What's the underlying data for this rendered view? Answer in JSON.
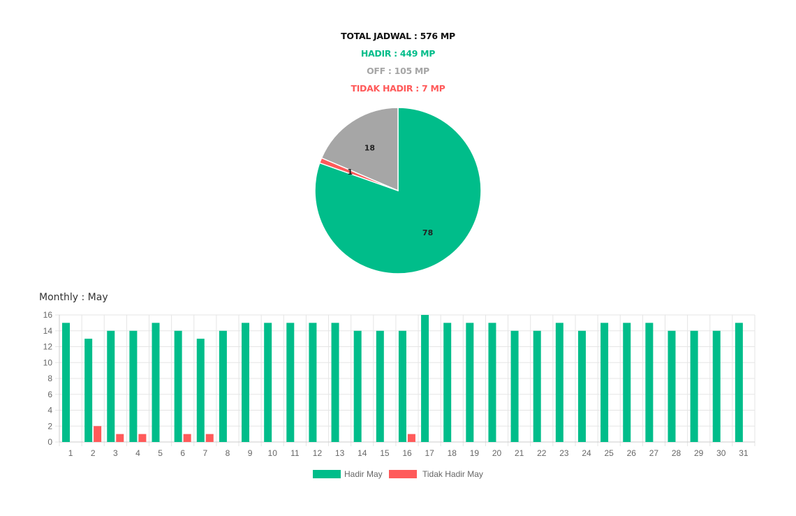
{
  "summary": {
    "total": "TOTAL JADWAL : 576 MP",
    "hadir": "HADIR : 449 MP",
    "off": "OFF : 105 MP",
    "tidak_hadir": "TIDAK HADIR : 7 MP"
  },
  "colors": {
    "hadir": "#00bd8a",
    "off": "#a6a6a6",
    "tidak_hadir": "#ff5a5a",
    "grid": "#e5e5e5",
    "axis_text": "#666666"
  },
  "monthly_title": "Monthly : May",
  "chart_data": [
    {
      "type": "pie",
      "slices": [
        {
          "label": "78",
          "value": 78,
          "color": "#00bd8a"
        },
        {
          "label": "1",
          "value": 1,
          "color": "#ff5a5a"
        },
        {
          "label": "18",
          "value": 18,
          "color": "#a6a6a6"
        }
      ]
    },
    {
      "type": "bar",
      "categories": [
        "1",
        "2",
        "3",
        "4",
        "5",
        "6",
        "7",
        "8",
        "9",
        "10",
        "11",
        "12",
        "13",
        "14",
        "15",
        "16",
        "17",
        "18",
        "19",
        "20",
        "21",
        "22",
        "23",
        "24",
        "25",
        "26",
        "27",
        "28",
        "29",
        "30",
        "31"
      ],
      "series": [
        {
          "name": "Hadir May",
          "color": "#00bd8a",
          "values": [
            15,
            13,
            14,
            14,
            15,
            14,
            13,
            14,
            15,
            15,
            15,
            15,
            15,
            14,
            14,
            14,
            16,
            15,
            15,
            15,
            14,
            14,
            15,
            14,
            15,
            15,
            15,
            14,
            14,
            14,
            15
          ]
        },
        {
          "name": "Tidak Hadir May",
          "color": "#ff5a5a",
          "values": [
            0,
            2,
            1,
            1,
            0,
            1,
            1,
            0,
            0,
            0,
            0,
            0,
            0,
            0,
            0,
            1,
            0,
            0,
            0,
            0,
            0,
            0,
            0,
            0,
            0,
            0,
            0,
            0,
            0,
            0,
            0
          ]
        }
      ],
      "yticks": [
        0,
        2,
        4,
        6,
        8,
        10,
        12,
        14,
        16
      ],
      "ylim": [
        0,
        16
      ],
      "grid": true,
      "legend": "bottom"
    }
  ]
}
